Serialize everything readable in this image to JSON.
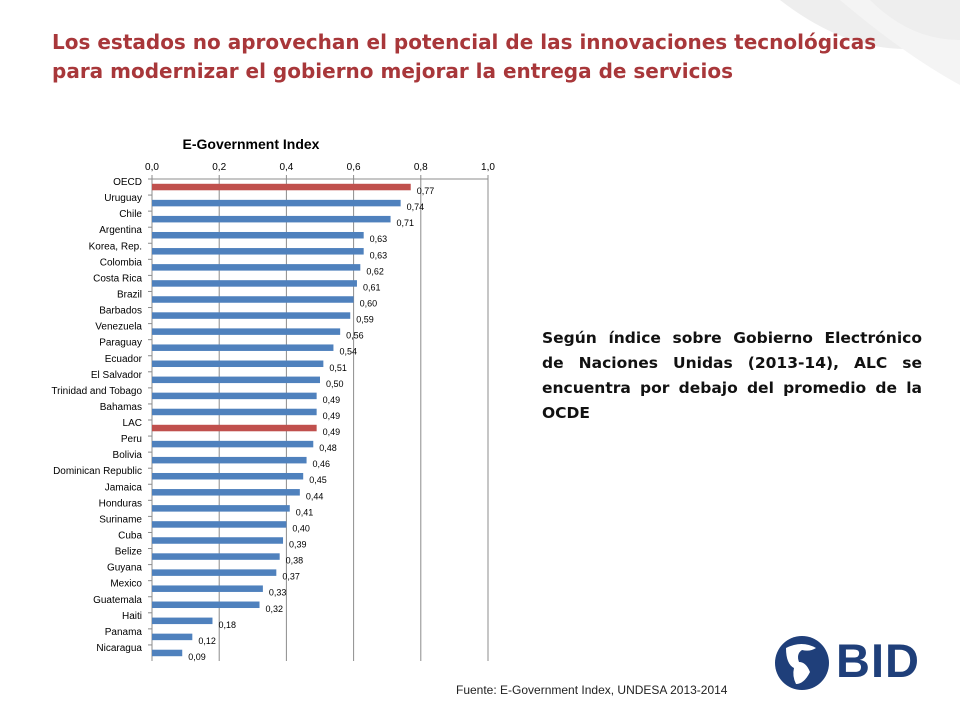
{
  "slide": {
    "title": "Los estados no aprovechan el potencial de las innovaciones tecnológicas para modernizar el gobierno mejorar la entrega de servicios",
    "side_text": "Según índice sobre Gobierno Electrónico de Naciones Unidas (2013-14), ALC se encuentra por debajo del promedio de la OCDE",
    "source": "Fuente: E-Government Index, UNDESA 2013-2014",
    "logo_text": "BID"
  },
  "colors": {
    "title": "#a8373a",
    "bar_default": "#4f81bd",
    "bar_highlight": "#c0504d",
    "logo": "#1f3f7a"
  },
  "chart_data": {
    "type": "bar",
    "orientation": "horizontal",
    "title": "E-Government Index",
    "xlabel": "",
    "ylabel": "",
    "xlim": [
      0,
      1.0
    ],
    "ticks": [
      "0,0",
      "0,2",
      "0,4",
      "0,6",
      "0,8",
      "1,0"
    ],
    "tick_values": [
      0,
      0.2,
      0.4,
      0.6,
      0.8,
      1.0
    ],
    "axis_position": "top",
    "grid": true,
    "categories": [
      "OECD",
      "Uruguay",
      "Chile",
      "Argentina",
      "Korea, Rep.",
      "Colombia",
      "Costa Rica",
      "Brazil",
      "Barbados",
      "Venezuela",
      "Paraguay",
      "Ecuador",
      "El Salvador",
      "Trinidad and Tobago",
      "Bahamas",
      "LAC",
      "Peru",
      "Bolivia",
      "Dominican Republic",
      "Jamaica",
      "Honduras",
      "Suriname",
      "Cuba",
      "Belize",
      "Guyana",
      "Mexico",
      "Guatemala",
      "Haiti",
      "Panama",
      "Nicaragua"
    ],
    "values": [
      0.77,
      0.74,
      0.71,
      0.63,
      0.63,
      0.62,
      0.61,
      0.6,
      0.59,
      0.56,
      0.54,
      0.51,
      0.5,
      0.49,
      0.49,
      0.49,
      0.48,
      0.46,
      0.45,
      0.44,
      0.41,
      0.4,
      0.39,
      0.38,
      0.37,
      0.33,
      0.32,
      0.18,
      0.12,
      0.09
    ],
    "value_labels": [
      "0,77",
      "0,74",
      "0,71",
      "0,63",
      "0,63",
      "0,62",
      "0,61",
      "0,60",
      "0,59",
      "0,56",
      "0,54",
      "0,51",
      "0,50",
      "0,49",
      "0,49",
      "0,49",
      "0,48",
      "0,46",
      "0,45",
      "0,44",
      "0,41",
      "0,40",
      "0,39",
      "0,38",
      "0,37",
      "0,33",
      "0,32",
      "0,18",
      "0,12",
      "0,09"
    ],
    "highlighted": [
      "OECD",
      "LAC"
    ]
  }
}
